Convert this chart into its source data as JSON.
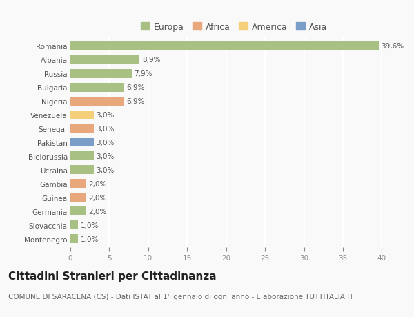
{
  "countries": [
    "Romania",
    "Albania",
    "Russia",
    "Bulgaria",
    "Nigeria",
    "Venezuela",
    "Senegal",
    "Pakistan",
    "Bielorussia",
    "Ucraina",
    "Gambia",
    "Guinea",
    "Germania",
    "Slovacchia",
    "Montenegro"
  ],
  "values": [
    39.6,
    8.9,
    7.9,
    6.9,
    6.9,
    3.0,
    3.0,
    3.0,
    3.0,
    3.0,
    2.0,
    2.0,
    2.0,
    1.0,
    1.0
  ],
  "labels": [
    "39,6%",
    "8,9%",
    "7,9%",
    "6,9%",
    "6,9%",
    "3,0%",
    "3,0%",
    "3,0%",
    "3,0%",
    "3,0%",
    "2,0%",
    "2,0%",
    "2,0%",
    "1,0%",
    "1,0%"
  ],
  "continents": [
    "Europa",
    "Europa",
    "Europa",
    "Europa",
    "Africa",
    "America",
    "Africa",
    "Asia",
    "Europa",
    "Europa",
    "Africa",
    "Africa",
    "Europa",
    "Europa",
    "Europa"
  ],
  "continent_colors": {
    "Europa": "#a8c084",
    "Africa": "#e8a87c",
    "America": "#f5d07a",
    "Asia": "#7b9ec9"
  },
  "legend_order": [
    "Europa",
    "Africa",
    "America",
    "Asia"
  ],
  "title": "Cittadini Stranieri per Cittadinanza",
  "subtitle": "COMUNE DI SARACENA (CS) - Dati ISTAT al 1° gennaio di ogni anno - Elaborazione TUTTITALIA.IT",
  "xlim": [
    0,
    42
  ],
  "xticks": [
    0,
    5,
    10,
    15,
    20,
    25,
    30,
    35,
    40
  ],
  "bg_color": "#f9f9f9",
  "grid_color": "#ffffff",
  "bar_height": 0.65,
  "title_fontsize": 11,
  "subtitle_fontsize": 7.5,
  "label_fontsize": 7.5,
  "tick_fontsize": 7.5,
  "legend_fontsize": 9
}
